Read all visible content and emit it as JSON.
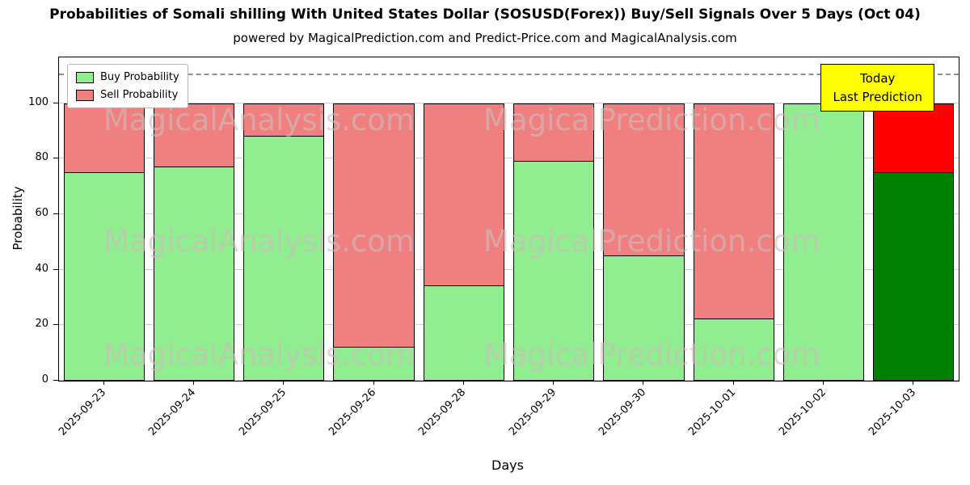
{
  "title": "Probabilities of Somali shilling With United States Dollar (SOSUSD(Forex)) Buy/Sell Signals Over 5 Days (Oct 04)",
  "subtitle": "powered by MagicalPrediction.com and Predict-Price.com and MagicalAnalysis.com",
  "legend": {
    "buy": "Buy Probability",
    "sell": "Sell Probability"
  },
  "annotation": {
    "line1": "Today",
    "line2": "Last Prediction"
  },
  "axes": {
    "xlabel": "Days",
    "ylabel": "Probability",
    "yticks": [
      0,
      20,
      40,
      60,
      80,
      100
    ]
  },
  "watermarks": {
    "left": "MagicalAnalysis.com",
    "right": "MagicalPrediction.com"
  },
  "colors": {
    "buy": "#90ee90",
    "sell": "#f08080",
    "buy_today": "#008000",
    "sell_today": "#ff0000",
    "edge": "#000000",
    "grid": "#cccccc",
    "dashed_line": "#8f8f8f",
    "annotation_bg": "#ffff00"
  },
  "chart_data": {
    "type": "bar",
    "stacked": true,
    "title": "Probabilities of Somali shilling With United States Dollar (SOSUSD(Forex)) Buy/Sell Signals Over 5 Days (Oct 04)",
    "xlabel": "Days",
    "ylabel": "Probability",
    "categories": [
      "2025-09-23",
      "2025-09-24",
      "2025-09-25",
      "2025-09-26",
      "2025-09-28",
      "2025-09-29",
      "2025-09-30",
      "2025-10-01",
      "2025-10-02",
      "2025-10-03"
    ],
    "series": [
      {
        "name": "Buy Probability",
        "values": [
          75,
          77,
          88,
          12,
          34,
          79,
          45,
          22,
          100,
          75
        ]
      },
      {
        "name": "Sell Probability",
        "values": [
          25,
          23,
          12,
          88,
          66,
          21,
          55,
          78,
          0,
          25
        ]
      }
    ],
    "ylim": [
      0,
      116.5
    ],
    "yticks": [
      0,
      20,
      40,
      60,
      80,
      100
    ],
    "grid": true,
    "legend_position": "upper-left",
    "dashed_line_y": 110,
    "highlight_index": 9,
    "highlight_label": "Today / Last Prediction"
  }
}
